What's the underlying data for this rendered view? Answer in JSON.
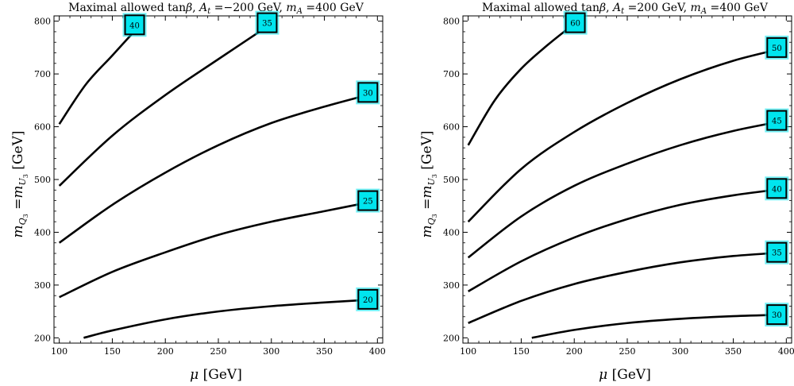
{
  "chart_data": [
    {
      "type": "line",
      "subtype": "contour",
      "title_parts": {
        "prefix": "Maximal allowed tan",
        "beta": "β",
        "sep1": ", ",
        "at": "A",
        "at_sub": "t",
        "at_val": " =−200 GeV, ",
        "ma": "m",
        "ma_sub": "A",
        "ma_val": " =400 GeV"
      },
      "xlabel": {
        "sym": "μ",
        "unit": " [GeV]"
      },
      "ylabel": {
        "m": "m",
        "q": "Q",
        "q3": "3",
        "eq": " =",
        "m2": "m",
        "u": "U",
        "u3": "3",
        "unit": " [GeV]"
      },
      "xlim": [
        95,
        405
      ],
      "ylim": [
        190,
        810
      ],
      "xticks": [
        100,
        150,
        200,
        250,
        300,
        350,
        400
      ],
      "yticks": [
        200,
        300,
        400,
        500,
        600,
        700,
        800
      ],
      "label_color": "#00e5ee",
      "series": [
        {
          "name": "20",
          "x": [
            123,
            150,
            200,
            250,
            300,
            350,
            400
          ],
          "y": [
            200,
            214,
            235,
            250,
            260,
            267,
            273
          ],
          "label_at": [
            400,
            273
          ]
        },
        {
          "name": "25",
          "x": [
            100,
            150,
            200,
            250,
            300,
            350,
            400
          ],
          "y": [
            277,
            325,
            362,
            395,
            420,
            440,
            460
          ],
          "label_at": [
            400,
            460
          ]
        },
        {
          "name": "30",
          "x": [
            100,
            150,
            200,
            250,
            300,
            350,
            400
          ],
          "y": [
            380,
            452,
            513,
            565,
            607,
            638,
            665
          ],
          "label_at": [
            400,
            665
          ]
        },
        {
          "name": "35",
          "x": [
            100,
            150,
            200,
            250,
            300
          ],
          "y": [
            488,
            583,
            660,
            728,
            795
          ],
          "label_at": [
            305,
            797
          ]
        },
        {
          "name": "40",
          "x": [
            100,
            125,
            150,
            175
          ],
          "y": [
            605,
            680,
            735,
            790
          ],
          "label_at": [
            180,
            793
          ]
        }
      ]
    },
    {
      "type": "line",
      "subtype": "contour",
      "title_parts": {
        "prefix": "Maximal allowed tan",
        "beta": "β",
        "sep1": ", ",
        "at": "A",
        "at_sub": "t",
        "at_val": " =200 GeV, ",
        "ma": "m",
        "ma_sub": "A",
        "ma_val": " =400 GeV"
      },
      "xlabel": {
        "sym": "μ",
        "unit": " [GeV]"
      },
      "ylabel": {
        "m": "m",
        "q": "Q",
        "q3": "3",
        "eq": " =",
        "m2": "m",
        "u": "U",
        "u3": "3",
        "unit": " [GeV]"
      },
      "xlim": [
        95,
        405
      ],
      "ylim": [
        190,
        810
      ],
      "xticks": [
        100,
        150,
        200,
        250,
        300,
        350,
        400
      ],
      "yticks": [
        200,
        300,
        400,
        500,
        600,
        700,
        800
      ],
      "label_color": "#00e5ee",
      "series": [
        {
          "name": "30",
          "x": [
            160,
            200,
            250,
            300,
            350,
            400
          ],
          "y": [
            200,
            215,
            228,
            236,
            241,
            244
          ],
          "label_at": [
            400,
            244
          ]
        },
        {
          "name": "35",
          "x": [
            100,
            150,
            200,
            250,
            300,
            350,
            400
          ],
          "y": [
            228,
            270,
            302,
            325,
            343,
            355,
            362
          ],
          "label_at": [
            400,
            362
          ]
        },
        {
          "name": "40",
          "x": [
            100,
            150,
            200,
            250,
            300,
            350,
            400
          ],
          "y": [
            288,
            345,
            390,
            425,
            452,
            470,
            483
          ],
          "label_at": [
            400,
            483
          ]
        },
        {
          "name": "45",
          "x": [
            100,
            150,
            200,
            250,
            300,
            350,
            400
          ],
          "y": [
            352,
            430,
            488,
            530,
            565,
            592,
            612
          ],
          "label_at": [
            400,
            612
          ]
        },
        {
          "name": "50",
          "x": [
            100,
            150,
            200,
            250,
            300,
            350,
            400
          ],
          "y": [
            420,
            520,
            590,
            645,
            690,
            725,
            750
          ],
          "label_at": [
            400,
            750
          ]
        },
        {
          "name": "60",
          "x": [
            100,
            125,
            150,
            175,
            200
          ],
          "y": [
            565,
            650,
            710,
            755,
            795
          ],
          "label_at": [
            210,
            797
          ]
        }
      ]
    }
  ]
}
